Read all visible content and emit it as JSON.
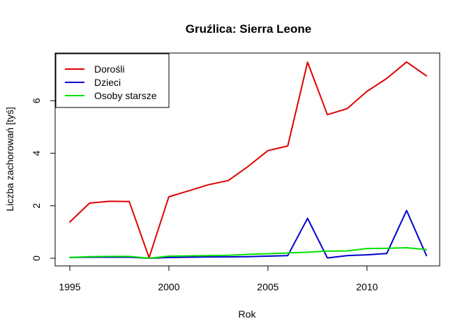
{
  "chart_data": {
    "type": "line",
    "title": "Gruźlica: Sierra Leone",
    "xlabel": "Rok",
    "ylabel": "Liczba zachorowań [tyś]",
    "x": [
      1995,
      1996,
      1997,
      1998,
      1999,
      2000,
      2001,
      2002,
      2003,
      2004,
      2005,
      2006,
      2007,
      2008,
      2009,
      2010,
      2011,
      2012,
      2013
    ],
    "xlim": [
      1995,
      2013
    ],
    "ylim": [
      0,
      7.5
    ],
    "x_ticks": [
      1995,
      2000,
      2005,
      2010
    ],
    "y_ticks": [
      0,
      2,
      4,
      6
    ],
    "legend_position": "top-left",
    "grid": false,
    "series": [
      {
        "name": "Dorośli",
        "color": "#e00000",
        "values": [
          1.38,
          2.1,
          2.17,
          2.16,
          0.02,
          2.34,
          2.57,
          2.8,
          2.96,
          3.5,
          4.1,
          4.28,
          7.47,
          5.47,
          5.7,
          6.36,
          6.85,
          7.48,
          6.95
        ]
      },
      {
        "name": "Dzieci",
        "color": "#0000d0",
        "values": [
          0.03,
          0.04,
          0.04,
          0.04,
          0.0,
          0.03,
          0.04,
          0.05,
          0.05,
          0.06,
          0.08,
          0.1,
          1.52,
          0.01,
          0.1,
          0.13,
          0.18,
          1.82,
          0.1
        ]
      },
      {
        "name": "Osoby starsze",
        "color": "#00e000",
        "values": [
          0.03,
          0.06,
          0.07,
          0.07,
          0.0,
          0.08,
          0.09,
          0.1,
          0.11,
          0.15,
          0.17,
          0.2,
          0.23,
          0.27,
          0.28,
          0.37,
          0.38,
          0.4,
          0.33
        ]
      }
    ]
  }
}
